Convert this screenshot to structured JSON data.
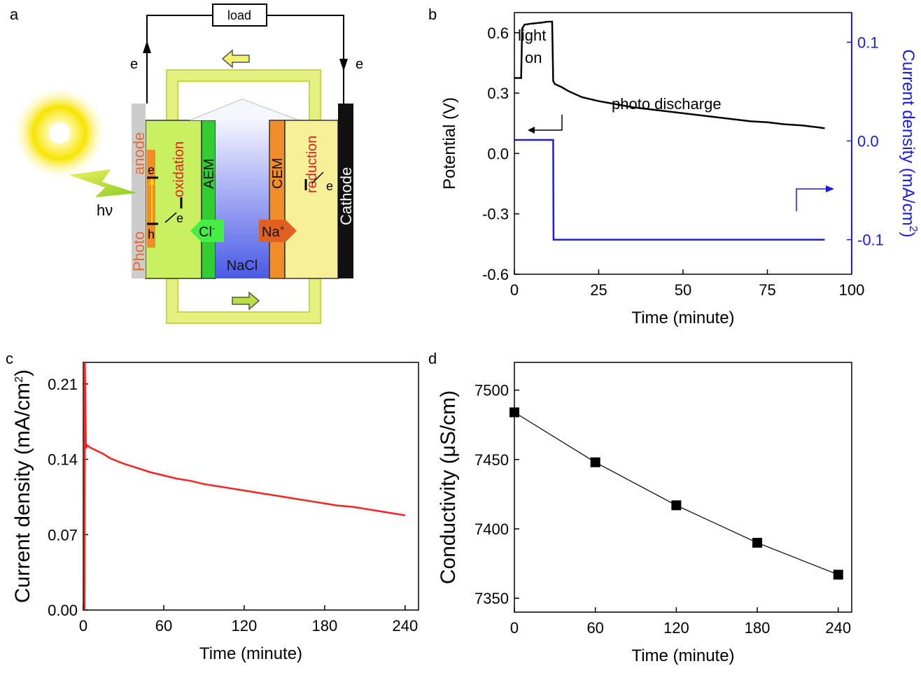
{
  "panels": {
    "a": {
      "letter": "a",
      "labels": {
        "load": "load",
        "e_left": "e",
        "e_right": "e",
        "hv": "hν",
        "photo": "Photo",
        "anode": "anode",
        "oxidation": "oxidation",
        "reduction": "reduction",
        "aem": "AEM",
        "cem": "CEM",
        "cathode": "Cathode",
        "nacl": "NaCl",
        "cl": "Cl",
        "cl_sup": "-",
        "na": "Na",
        "na_sup": "+",
        "e_band": "e",
        "h_band": "h",
        "e_arrow": "e",
        "e_cathode": "e"
      },
      "colors": {
        "anolyte": "#c8f060",
        "catholyte": "#f8f098",
        "aem": "#33cc33",
        "cem": "#f28c28",
        "nacl_top": "#f0f0ff",
        "nacl_bottom": "#5060e8",
        "cathode": "#111111",
        "photoanode": "#cccccc",
        "loop": "#c8e040",
        "text_orange": "#e86a2a",
        "text_red": "#e02020"
      }
    },
    "b": {
      "letter": "b",
      "annotations": {
        "light": "light",
        "on": "on",
        "photo_discharge": "photo discharge"
      },
      "colors": {
        "potential": "#000000",
        "current": "#1a1ae6"
      }
    },
    "c": {
      "letter": "c",
      "colors": {
        "line": "#ff2020"
      }
    },
    "d": {
      "letter": "d",
      "colors": {
        "marker": "#000000"
      }
    }
  },
  "chart_data": [
    {
      "panel": "b",
      "type": "line",
      "title": "",
      "xlabel": "Time (minute)",
      "ylabel": "Potential (V)",
      "ylabel_right": "Current density (mA/cm",
      "ylabel_right_sup": "2",
      "ylabel_right_end": ")",
      "xlim": [
        0,
        100
      ],
      "ylim": [
        -0.6,
        0.7
      ],
      "ylim_right": [
        -0.135,
        0.13
      ],
      "xticks": [
        0,
        25,
        50,
        75,
        100
      ],
      "yticks": [
        -0.6,
        -0.3,
        0.0,
        0.3,
        0.6
      ],
      "yticks_right": [
        -0.1,
        0.0,
        0.1
      ],
      "xtick_labels": [
        "0",
        "25",
        "50",
        "75",
        "100"
      ],
      "ytick_labels": [
        "-0.6",
        "-0.3",
        "0.0",
        "0.3",
        "0.6"
      ],
      "ytick_labels_right": [
        "-0.1",
        "0.0",
        "0.1"
      ],
      "series": [
        {
          "name": "Potential",
          "axis": "left",
          "x": [
            0,
            2,
            2.3,
            3,
            5,
            8,
            10,
            11.2,
            11.5,
            12,
            14,
            16,
            18,
            20,
            25,
            30,
            35,
            40,
            45,
            50,
            55,
            60,
            65,
            70,
            75,
            80,
            85,
            90,
            92
          ],
          "y": [
            0.375,
            0.375,
            0.62,
            0.64,
            0.645,
            0.65,
            0.655,
            0.655,
            0.36,
            0.345,
            0.33,
            0.31,
            0.295,
            0.28,
            0.26,
            0.245,
            0.23,
            0.22,
            0.21,
            0.2,
            0.19,
            0.18,
            0.17,
            0.16,
            0.155,
            0.145,
            0.14,
            0.13,
            0.125
          ]
        },
        {
          "name": "Current density",
          "axis": "right",
          "x": [
            0,
            11.5,
            11.6,
            92
          ],
          "y": [
            0.001,
            0.001,
            -0.1,
            -0.1
          ]
        }
      ]
    },
    {
      "panel": "c",
      "type": "line",
      "title": "",
      "xlabel": "Time (minute)",
      "ylabel": "Current density (mA/cm",
      "ylabel_sup": "2",
      "ylabel_end": ")",
      "xlim": [
        0,
        250
      ],
      "ylim": [
        0,
        0.23
      ],
      "xticks": [
        0,
        60,
        120,
        180,
        240
      ],
      "yticks": [
        0.0,
        0.07,
        0.14,
        0.21
      ],
      "xtick_labels": [
        "0",
        "60",
        "120",
        "180",
        "240"
      ],
      "ytick_labels": [
        "0.00",
        "0.07",
        "0.14",
        "0.21"
      ],
      "series": [
        {
          "name": "Current density",
          "x": [
            1,
            1.2,
            2,
            3,
            5,
            10,
            15,
            20,
            30,
            40,
            50,
            60,
            70,
            80,
            90,
            100,
            110,
            120,
            130,
            140,
            150,
            160,
            170,
            180,
            190,
            200,
            210,
            220,
            230,
            240
          ],
          "y": [
            0,
            0.23,
            0.15,
            0.153,
            0.151,
            0.148,
            0.145,
            0.141,
            0.136,
            0.132,
            0.128,
            0.125,
            0.122,
            0.12,
            0.117,
            0.115,
            0.113,
            0.111,
            0.109,
            0.107,
            0.105,
            0.103,
            0.101,
            0.099,
            0.097,
            0.096,
            0.094,
            0.092,
            0.09,
            0.088
          ]
        }
      ]
    },
    {
      "panel": "d",
      "type": "scatter",
      "title": "",
      "xlabel": "Time (minute)",
      "ylabel": "Conductivity (μS/cm)",
      "xlim": [
        0,
        250
      ],
      "ylim": [
        7340,
        7520
      ],
      "xticks": [
        0,
        60,
        120,
        180,
        240
      ],
      "yticks": [
        7350,
        7400,
        7450,
        7500
      ],
      "xtick_labels": [
        "0",
        "60",
        "120",
        "180",
        "240"
      ],
      "ytick_labels": [
        "7350",
        "7400",
        "7450",
        "7500"
      ],
      "series": [
        {
          "name": "Conductivity",
          "x": [
            0,
            60,
            120,
            180,
            240
          ],
          "y": [
            7484,
            7448,
            7417,
            7390,
            7367
          ]
        }
      ]
    }
  ]
}
